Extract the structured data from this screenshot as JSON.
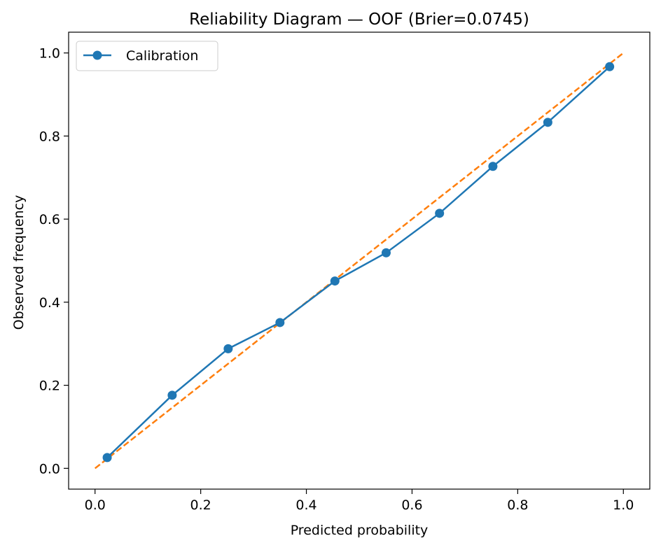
{
  "chart_data": {
    "type": "line",
    "title": "Reliability Diagram — OOF (Brier=0.0745)",
    "xlabel": "Predicted probability",
    "ylabel": "Observed frequency",
    "xlim": [
      -0.05,
      1.05
    ],
    "ylim": [
      -0.05,
      1.05
    ],
    "xticks": [
      "0.0",
      "0.2",
      "0.4",
      "0.6",
      "0.8",
      "1.0"
    ],
    "yticks": [
      "0.0",
      "0.2",
      "0.4",
      "0.6",
      "0.8",
      "1.0"
    ],
    "grid": false,
    "legend_position": "top-left",
    "series": [
      {
        "name": "Calibration",
        "style": "solid-with-markers",
        "color": "#1f77b4",
        "x": [
          0.023,
          0.146,
          0.252,
          0.35,
          0.454,
          0.551,
          0.652,
          0.753,
          0.857,
          0.974
        ],
        "y": [
          0.026,
          0.176,
          0.288,
          0.351,
          0.451,
          0.519,
          0.614,
          0.727,
          0.833,
          0.967
        ]
      },
      {
        "name": "",
        "style": "dashed",
        "color": "#ff7f0e",
        "x": [
          0.0,
          1.0
        ],
        "y": [
          0.0,
          1.0
        ]
      }
    ]
  }
}
